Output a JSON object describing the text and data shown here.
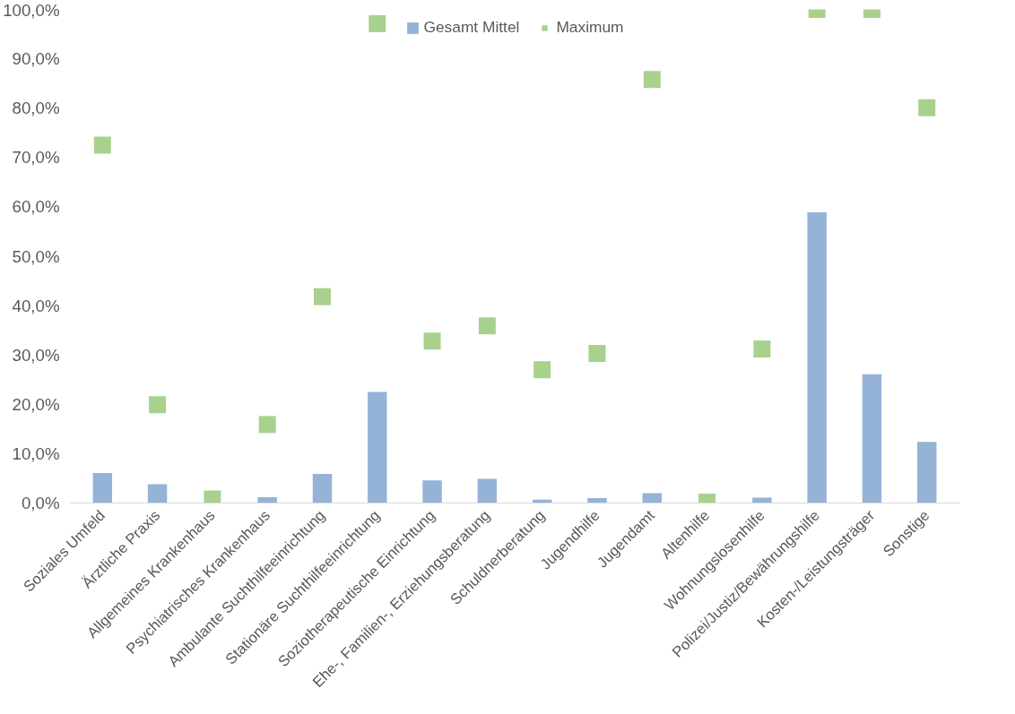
{
  "chart_data": {
    "type": "bar",
    "categories": [
      "Soziales Umfeld",
      "Ärztliche Praxis",
      "Allgemeines Krankenhaus",
      "Psychiatrisches Krankenhaus",
      "Ambulante Suchthilfeeinrichtung",
      "Stationäre Suchthilfeeinrichtung",
      "Soziotherapeutische Einrichtung",
      "Ehe-, Familien-, Erziehungsberatung",
      "Schuldnerberatung",
      "Jugendhilfe",
      "Jugendamt",
      "Altenhilfe",
      "Wohnungslosenhilfe",
      "Polizei/Justiz/Bewährungshilfe",
      "Kosten-/Leistungsträger",
      "Sonstige"
    ],
    "series": [
      {
        "name": "Gesamt Mittel",
        "type": "bar",
        "color": "#95b3d7",
        "values": [
          6.1,
          3.8,
          0,
          1.2,
          5.9,
          22.5,
          4.6,
          4.9,
          0.7,
          1.0,
          2.0,
          0,
          1.1,
          58.9,
          26.1,
          12.4
        ]
      },
      {
        "name": "Maximum",
        "type": "scatter",
        "color": "#a9d18e",
        "marker": "square",
        "values": [
          72.5,
          19.9,
          0.8,
          15.9,
          41.8,
          97.1,
          32.8,
          35.9,
          27.0,
          30.3,
          85.8,
          0.2,
          31.2,
          100,
          100,
          80.1
        ]
      }
    ],
    "ylim": [
      0,
      100
    ],
    "yticks": [
      {
        "value": 0,
        "label": "0,0%"
      },
      {
        "value": 10,
        "label": "10,0%"
      },
      {
        "value": 20,
        "label": "20,0%"
      },
      {
        "value": 30,
        "label": "30,0%"
      },
      {
        "value": 40,
        "label": "40,0%"
      },
      {
        "value": 50,
        "label": "50,0%"
      },
      {
        "value": 60,
        "label": "60,0%"
      },
      {
        "value": 70,
        "label": "70,0%"
      },
      {
        "value": 80,
        "label": "80,0%"
      },
      {
        "value": 90,
        "label": "90,0%"
      },
      {
        "value": 100,
        "label": "100,0%"
      }
    ],
    "grid": false,
    "legend": "top"
  }
}
